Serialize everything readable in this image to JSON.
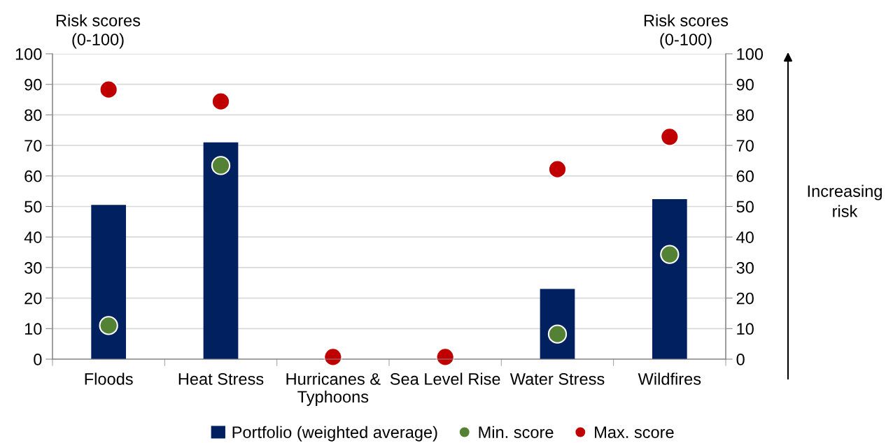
{
  "chart_data": {
    "type": "bar",
    "categories": [
      "Floods",
      "Heat Stress",
      "Hurricanes & Typhoons",
      "Sea Level Rise",
      "Water Stress",
      "Wildfires"
    ],
    "ylabel": "Risk scores (0-100)",
    "y2label": "Risk scores (0-100)",
    "series": [
      {
        "name": "Portfolio (weighted average)",
        "color": "#002060",
        "values": [
          50.5,
          71,
          null,
          null,
          23,
          52.4
        ]
      },
      {
        "name": "Min. score",
        "type": "scatter",
        "color": "#548235",
        "x": [
          "Floods",
          "Heat Stress",
          "Hurricanes & Typhoons",
          "Sea Level Rise",
          "Water Stress",
          "Wildfires"
        ],
        "values": [
          11,
          63.4,
          null,
          null,
          8.2,
          34.3
        ]
      },
      {
        "name": "Max. score",
        "type": "scatter",
        "color": "#c00000",
        "x": [
          "Floods",
          "Heat Stress",
          "Hurricanes & Typhoons",
          "Sea Level Rise",
          "Water Stress",
          "Wildfires"
        ],
        "values": [
          88.3,
          84.4,
          0.7,
          0.7,
          62.2,
          72.8
        ]
      }
    ],
    "ylim": [
      0,
      100
    ],
    "yticks": [
      0,
      10,
      20,
      30,
      40,
      50,
      60,
      70,
      80,
      90,
      100
    ],
    "y2lim": [
      0,
      100
    ],
    "y2ticks": [
      0,
      10,
      20,
      30,
      40,
      50,
      60,
      70,
      80,
      90,
      100
    ],
    "grid": "y",
    "legend": "bottom",
    "marker": "circle",
    "annotations": [
      "Increasing risk"
    ]
  }
}
